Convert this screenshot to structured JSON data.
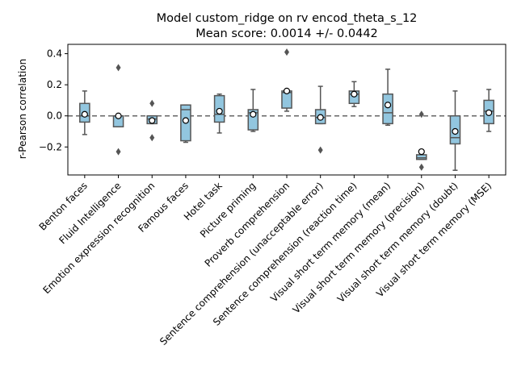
{
  "chart_data": {
    "type": "box",
    "title_line1": "Model custom_ridge on rv encod_theta_s_12",
    "title_line2": "Mean score: 0.0014 +/- 0.0442",
    "xlabel": "",
    "ylabel": "r-Pearson correlation",
    "ylim": [
      -0.38,
      0.46
    ],
    "yticks": [
      -0.2,
      0.0,
      0.2,
      0.4
    ],
    "ytick_labels": [
      "−0.2",
      "0.0",
      "0.2",
      "0.4"
    ],
    "reference_line_y": 0.0,
    "grid": false,
    "colors": {
      "box_fill": "#92c6df",
      "box_edge": "#555555",
      "outlier": "#555555",
      "mean_marker_fill": "#ffffff",
      "reference_line": "#666666"
    },
    "categories": [
      "Benton faces",
      "Fluid Intelligence",
      "Emotion expression recognition",
      "Famous faces",
      "Hotel task",
      "Picture priming",
      "Proverb comprehension",
      "Sentence comprehension (unacceptable error)",
      "Sentence comprehension (reaction time)",
      "Visual short term memory (mean)",
      "Visual short term memory (precision)",
      "Visual short term memory (doubt)",
      "Visual short term memory (MSE)"
    ],
    "boxes": [
      {
        "whisker_low": -0.12,
        "q1": -0.04,
        "median": 0.0,
        "q3": 0.08,
        "whisker_high": 0.16,
        "mean": 0.01,
        "outliers": []
      },
      {
        "whisker_low": -0.07,
        "q1": -0.07,
        "median": 0.0,
        "q3": 0.0,
        "whisker_high": 0.0,
        "mean": 0.0,
        "outliers": [
          0.31,
          -0.23
        ]
      },
      {
        "whisker_low": -0.05,
        "q1": -0.05,
        "median": -0.02,
        "q3": 0.0,
        "whisker_high": 0.0,
        "mean": -0.03,
        "outliers": [
          0.08,
          -0.14
        ]
      },
      {
        "whisker_low": -0.17,
        "q1": -0.16,
        "median": 0.04,
        "q3": 0.07,
        "whisker_high": 0.07,
        "mean": -0.03,
        "outliers": []
      },
      {
        "whisker_low": -0.11,
        "q1": -0.04,
        "median": 0.01,
        "q3": 0.13,
        "whisker_high": 0.14,
        "mean": 0.03,
        "outliers": []
      },
      {
        "whisker_low": -0.1,
        "q1": -0.09,
        "median": 0.02,
        "q3": 0.04,
        "whisker_high": 0.17,
        "mean": 0.01,
        "outliers": []
      },
      {
        "whisker_low": 0.03,
        "q1": 0.05,
        "median": 0.15,
        "q3": 0.16,
        "whisker_high": 0.16,
        "mean": 0.16,
        "outliers": [
          0.41
        ]
      },
      {
        "whisker_low": -0.05,
        "q1": -0.05,
        "median": -0.01,
        "q3": 0.04,
        "whisker_high": 0.19,
        "mean": -0.01,
        "outliers": [
          -0.22
        ]
      },
      {
        "whisker_low": 0.06,
        "q1": 0.08,
        "median": 0.14,
        "q3": 0.16,
        "whisker_high": 0.22,
        "mean": 0.14,
        "outliers": []
      },
      {
        "whisker_low": -0.06,
        "q1": -0.05,
        "median": 0.02,
        "q3": 0.14,
        "whisker_high": 0.3,
        "mean": 0.07,
        "outliers": []
      },
      {
        "whisker_low": -0.28,
        "q1": -0.28,
        "median": -0.27,
        "q3": -0.25,
        "whisker_high": -0.25,
        "mean": -0.23,
        "outliers": [
          0.01,
          -0.33
        ]
      },
      {
        "whisker_low": -0.35,
        "q1": -0.18,
        "median": -0.14,
        "q3": 0.0,
        "whisker_high": 0.16,
        "mean": -0.1,
        "outliers": []
      },
      {
        "whisker_low": -0.1,
        "q1": -0.05,
        "median": 0.03,
        "q3": 0.1,
        "whisker_high": 0.17,
        "mean": 0.02,
        "outliers": []
      }
    ]
  }
}
